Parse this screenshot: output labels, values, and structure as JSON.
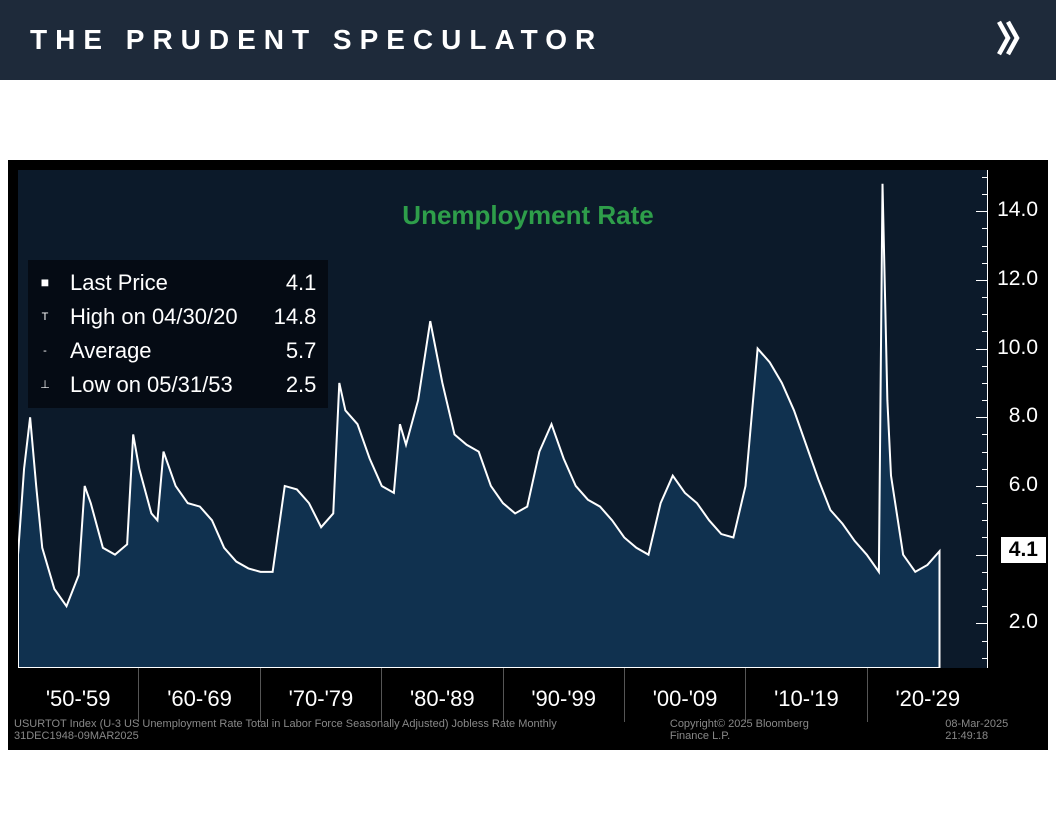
{
  "header": {
    "title": "THE PRUDENT SPECULATOR"
  },
  "chart": {
    "type": "area",
    "title": "Unemployment Rate",
    "title_color": "#2e9e4a",
    "title_fontsize": 26,
    "background_color": "#0c1a2a",
    "fill_color": "#10314f",
    "line_color": "#ffffff",
    "line_width": 2,
    "stats": {
      "last_price": {
        "label": "Last Price",
        "value": "4.1"
      },
      "high": {
        "label": "High on 04/30/20",
        "value": "14.8"
      },
      "average": {
        "label": "Average",
        "value": "5.7"
      },
      "low": {
        "label": "Low on 05/31/53",
        "value": "2.5"
      }
    },
    "last_price_tag": "4.1",
    "y_axis": {
      "lim": [
        0.7,
        15.2
      ],
      "ticks": [
        2.0,
        4.0,
        6.0,
        8.0,
        10.0,
        12.0,
        14.0
      ],
      "tick_labels": [
        "2.0",
        "4.0",
        "6.0",
        "8.0",
        "10.0",
        "12.0",
        "14.0"
      ],
      "minor_step": 0.5,
      "fontsize": 21,
      "color": "#ffffff"
    },
    "x_axis": {
      "decades": [
        "'50-'59",
        "'60-'69",
        "'70-'79",
        "'80-'89",
        "'90-'99",
        "'00-'09",
        "'10-'19",
        "'20-'29"
      ],
      "fontsize": 22,
      "color": "#ffffff",
      "start_year": 1949,
      "end_year": 2029
    },
    "series": [
      [
        1949,
        4.0
      ],
      [
        1949.5,
        6.5
      ],
      [
        1950,
        8.0
      ],
      [
        1950.5,
        6.0
      ],
      [
        1951,
        4.2
      ],
      [
        1952,
        3.0
      ],
      [
        1953,
        2.5
      ],
      [
        1954,
        3.4
      ],
      [
        1954.5,
        6.0
      ],
      [
        1955,
        5.5
      ],
      [
        1956,
        4.2
      ],
      [
        1957,
        4.0
      ],
      [
        1958,
        4.3
      ],
      [
        1958.5,
        7.5
      ],
      [
        1959,
        6.5
      ],
      [
        1960,
        5.2
      ],
      [
        1960.5,
        5.0
      ],
      [
        1961,
        7.0
      ],
      [
        1962,
        6.0
      ],
      [
        1963,
        5.5
      ],
      [
        1964,
        5.4
      ],
      [
        1965,
        5.0
      ],
      [
        1966,
        4.2
      ],
      [
        1967,
        3.8
      ],
      [
        1968,
        3.6
      ],
      [
        1969,
        3.5
      ],
      [
        1970,
        3.5
      ],
      [
        1971,
        6.0
      ],
      [
        1972,
        5.9
      ],
      [
        1973,
        5.5
      ],
      [
        1974,
        4.8
      ],
      [
        1975,
        5.2
      ],
      [
        1975.5,
        9.0
      ],
      [
        1976,
        8.2
      ],
      [
        1977,
        7.8
      ],
      [
        1978,
        6.8
      ],
      [
        1979,
        6.0
      ],
      [
        1980,
        5.8
      ],
      [
        1980.5,
        7.8
      ],
      [
        1981,
        7.2
      ],
      [
        1982,
        8.5
      ],
      [
        1983,
        10.8
      ],
      [
        1984,
        9.0
      ],
      [
        1985,
        7.5
      ],
      [
        1986,
        7.2
      ],
      [
        1987,
        7.0
      ],
      [
        1988,
        6.0
      ],
      [
        1989,
        5.5
      ],
      [
        1990,
        5.2
      ],
      [
        1991,
        5.4
      ],
      [
        1992,
        7.0
      ],
      [
        1993,
        7.8
      ],
      [
        1994,
        6.8
      ],
      [
        1995,
        6.0
      ],
      [
        1996,
        5.6
      ],
      [
        1997,
        5.4
      ],
      [
        1998,
        5.0
      ],
      [
        1999,
        4.5
      ],
      [
        2000,
        4.2
      ],
      [
        2001,
        4.0
      ],
      [
        2002,
        5.5
      ],
      [
        2003,
        6.3
      ],
      [
        2004,
        5.8
      ],
      [
        2005,
        5.5
      ],
      [
        2006,
        5.0
      ],
      [
        2007,
        4.6
      ],
      [
        2008,
        4.5
      ],
      [
        2009,
        6.0
      ],
      [
        2010,
        10.0
      ],
      [
        2011,
        9.6
      ],
      [
        2012,
        9.0
      ],
      [
        2013,
        8.2
      ],
      [
        2014,
        7.2
      ],
      [
        2015,
        6.2
      ],
      [
        2016,
        5.3
      ],
      [
        2017,
        4.9
      ],
      [
        2018,
        4.4
      ],
      [
        2019,
        4.0
      ],
      [
        2020,
        3.5
      ],
      [
        2020.3,
        14.8
      ],
      [
        2020.7,
        8.5
      ],
      [
        2021,
        6.3
      ],
      [
        2022,
        4.0
      ],
      [
        2023,
        3.5
      ],
      [
        2024,
        3.7
      ],
      [
        2025,
        4.1
      ]
    ],
    "footer": {
      "left": "USURTOT Index (U-3 US Unemployment Rate Total in Labor Force Seasonally Adjusted) Jobless Rate  Monthly 31DEC1948-09MAR2025",
      "center": "Copyright© 2025 Bloomberg Finance L.P.",
      "right": "08-Mar-2025 21:49:18"
    }
  }
}
